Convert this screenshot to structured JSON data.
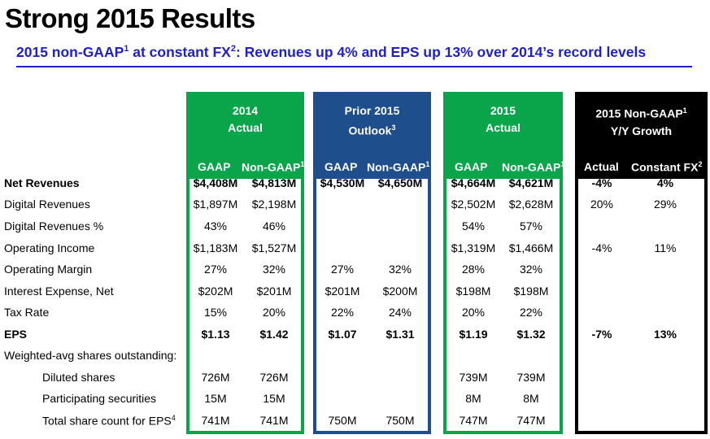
{
  "title": "Strong 2015 Results",
  "subtitle": {
    "part1": "2015 non-GAAP",
    "sup1": "1",
    "part2": " at constant FX",
    "sup2": "2",
    "part3": ": Revenues up 4% and EPS up 13% over 2014’s record levels"
  },
  "columns": {
    "actual_2014": {
      "line1": "2014",
      "line2": "Actual"
    },
    "outlook_2015": {
      "line1": "Prior 2015",
      "line2": "Outlook",
      "sup": "3"
    },
    "actual_2015": {
      "line1": "2015",
      "line2": "Actual"
    },
    "growth": {
      "line1": "2015 Non-GAAP",
      "sup": "1",
      "line2": "Y/Y Growth"
    }
  },
  "subheaders": {
    "gaap": "GAAP",
    "non_gaap": "Non-GAAP",
    "non_gaap_sup": "1",
    "actual": "Actual",
    "constant_fx": "Constant FX",
    "constant_fx_sup": "2"
  },
  "rows": [
    {
      "label": "Net Revenues",
      "bold": true,
      "values": [
        "$4,408M",
        "$4,813M",
        "$4,530M",
        "$4,650M",
        "$4,664M",
        "$4,621M",
        "-4%",
        "4%"
      ]
    },
    {
      "label": "Digital Revenues",
      "values": [
        "$1,897M",
        "$2,198M",
        "",
        "",
        "$2,502M",
        "$2,628M",
        "20%",
        "29%"
      ]
    },
    {
      "label": "Digital Revenues %",
      "values": [
        "43%",
        "46%",
        "",
        "",
        "54%",
        "57%",
        "",
        ""
      ]
    },
    {
      "label": "Operating Income",
      "values": [
        "$1,183M",
        "$1,527M",
        "",
        "",
        "$1,319M",
        "$1,466M",
        "-4%",
        "11%"
      ]
    },
    {
      "label": "Operating Margin",
      "values": [
        "27%",
        "32%",
        "27%",
        "32%",
        "28%",
        "32%",
        "",
        ""
      ]
    },
    {
      "label": "Interest Expense, Net",
      "values": [
        "$202M",
        "$201M",
        "$201M",
        "$200M",
        "$198M",
        "$198M",
        "",
        ""
      ]
    },
    {
      "label": "Tax Rate",
      "values": [
        "15%",
        "20%",
        "22%",
        "24%",
        "20%",
        "22%",
        "",
        ""
      ]
    },
    {
      "label": "EPS",
      "bold": true,
      "values": [
        "$1.13",
        "$1.42",
        "$1.07",
        "$1.31",
        "$1.19",
        "$1.32",
        "-7%",
        "13%"
      ]
    },
    {
      "label": "Weighted-avg shares outstanding:",
      "values": [
        "",
        "",
        "",
        "",
        "",
        "",
        "",
        ""
      ]
    },
    {
      "label": "Diluted shares",
      "indent": true,
      "values": [
        "726M",
        "726M",
        "",
        "",
        "739M",
        "739M",
        "",
        ""
      ]
    },
    {
      "label": "Participating securities",
      "indent": true,
      "values": [
        "15M",
        "15M",
        "",
        "",
        "8M",
        "8M",
        "",
        ""
      ]
    },
    {
      "label": "Total share count for EPS",
      "label_sup": "4",
      "indent": true,
      "values": [
        "741M",
        "741M",
        "750M",
        "750M",
        "747M",
        "747M",
        "",
        ""
      ]
    }
  ],
  "colors": {
    "green": "#0aa44a",
    "blue": "#1f4e8c",
    "black": "#000000",
    "accent": "#1f1fc8"
  }
}
